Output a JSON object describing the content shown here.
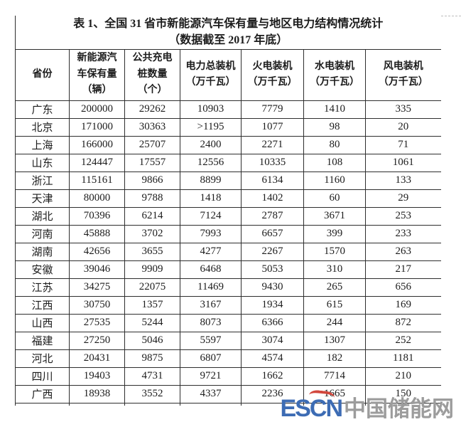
{
  "title": {
    "line1": "表 1、全国 31 省市新能源汽车保有量与地区电力结构情况统计",
    "line2": "（数据截至 2017 年底）"
  },
  "table": {
    "columns": [
      "省份",
      "新能源汽\n车保有量\n（辆）",
      "公共充电\n桩数量\n（个）",
      "电力总装机\n（万千瓦）",
      "火电装机\n（万千瓦）",
      "水电装机\n（万千瓦）",
      "风电装机\n（万千瓦）"
    ],
    "rows": [
      [
        "广东",
        "200000",
        "29262",
        "10903",
        "7779",
        "1410",
        "335"
      ],
      [
        "北京",
        "171000",
        "30363",
        ">1195",
        "1077",
        "98",
        "20"
      ],
      [
        "上海",
        "166000",
        "25707",
        "2400",
        "2271",
        "80",
        "71"
      ],
      [
        "山东",
        "124447",
        "17557",
        "12556",
        "10335",
        "108",
        "1061"
      ],
      [
        "浙江",
        "115161",
        "9866",
        "8899",
        "6134",
        "1160",
        "133"
      ],
      [
        "天津",
        "80000",
        "9788",
        "1418",
        "1402",
        "60",
        "29"
      ],
      [
        "湖北",
        "70396",
        "6214",
        "7124",
        "2787",
        "3671",
        "253"
      ],
      [
        "河南",
        "45888",
        "3702",
        "7993",
        "6657",
        "399",
        "233"
      ],
      [
        "湖南",
        "42656",
        "3655",
        "4277",
        "2267",
        "1570",
        "263"
      ],
      [
        "安徽",
        "39046",
        "9909",
        "6468",
        "5053",
        "310",
        "217"
      ],
      [
        "江苏",
        "34275",
        "22075",
        "11469",
        "9430",
        "265",
        "656"
      ],
      [
        "江西",
        "30750",
        "1357",
        "3167",
        "1934",
        "615",
        "169"
      ],
      [
        "山西",
        "27535",
        "5244",
        "8073",
        "6366",
        "244",
        "872"
      ],
      [
        "福建",
        "27250",
        "5046",
        "5597",
        "3074",
        "1307",
        "252"
      ],
      [
        "河北",
        "20431",
        "9875",
        "6807",
        "4574",
        "182",
        "1181"
      ],
      [
        "四川",
        "19403",
        "4731",
        "9721",
        "1662",
        "7714",
        "210"
      ],
      [
        "广西",
        "18938",
        "3552",
        "4337",
        "2236",
        "1665",
        "150"
      ]
    ]
  },
  "watermark": {
    "logo": "ESCN",
    "site": "中国储能网",
    "logo_color": "#3d6cb4",
    "site_color": "#9c9c9c",
    "accent_color": "#d2473d"
  }
}
